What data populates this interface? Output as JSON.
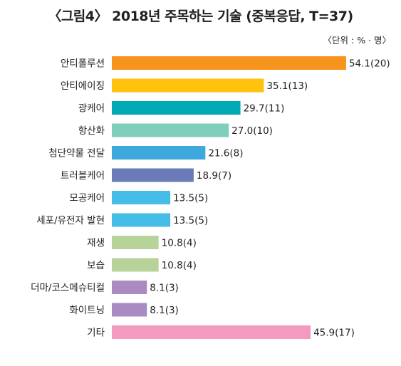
{
  "chart_data": {
    "type": "bar",
    "orientation": "horizontal",
    "title": "〈그림4〉 2018년 주목하는 기술 (중복응답, T=37)",
    "unit_note": "〈단위 : % · 명〉",
    "categories": [
      "안티폴루션",
      "안티에이징",
      "광케어",
      "항산화",
      "첨단약물 전달",
      "트러블케어",
      "모공케어",
      "세포/유전자 발현",
      "재생",
      "보습",
      "더마/코스메슈티컬",
      "화이트닝",
      "기타"
    ],
    "values": [
      54.1,
      35.1,
      29.7,
      27.0,
      21.6,
      18.9,
      13.5,
      13.5,
      10.8,
      10.8,
      8.1,
      8.1,
      45.9
    ],
    "counts": [
      20,
      13,
      11,
      10,
      8,
      7,
      5,
      5,
      4,
      4,
      3,
      3,
      17
    ],
    "value_labels": [
      "54.1(20)",
      "35.1(13)",
      "29.7(11)",
      "27.0(10)",
      "21.6(8)",
      "18.9(7)",
      "13.5(5)",
      "13.5(5)",
      "10.8(4)",
      "10.8(4)",
      "8.1(3)",
      "8.1(3)",
      "45.9(17)"
    ],
    "colors": [
      "#f7941d",
      "#ffc20e",
      "#00a9b5",
      "#7fcdbb",
      "#3ea8de",
      "#6a7bb8",
      "#45bde8",
      "#45bde8",
      "#b8d39a",
      "#b8d39a",
      "#a98bc1",
      "#a98bc1",
      "#f49ac1"
    ],
    "legend": "none",
    "grid": false
  }
}
